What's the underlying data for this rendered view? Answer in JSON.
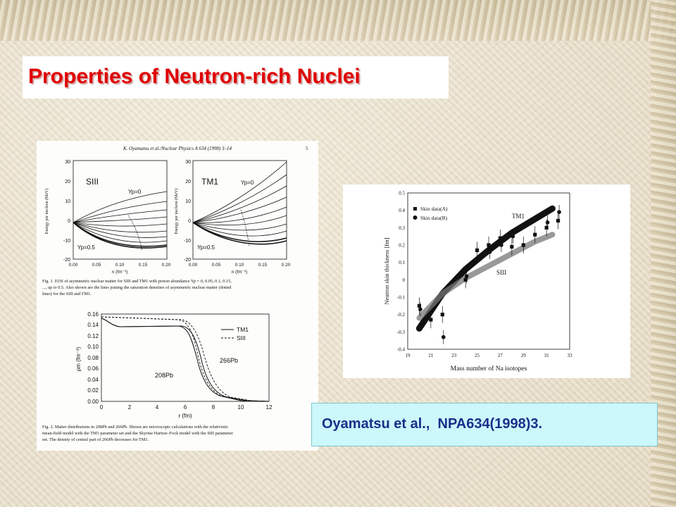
{
  "slide": {
    "title": "Properties of Neutron-rich Nuclei",
    "citation": "Oyamatsu et al.,  NPA634(1998)3."
  },
  "paper": {
    "header": "K. Oyamatsu et al./Nuclear Physics A 634 (1998) 3–14",
    "page_number": "5",
    "fig1_caption": [
      "Fig. 1. EOS of asymmetric nuclear matter for SIII and TM1 with proton abundance Yp = 0, 0.05, 0.1, 0.15,",
      "..., up to 0.5. Also shown are the lines joining the saturation densities of asymmetric nuclear matter (dotted",
      "lines) for the SIII and TM1."
    ],
    "fig2_caption": [
      "Fig. 2. Matter distributions in 208Pb and 266Pb. Shown are microscopic calculations with the relativistic",
      "mean-field model with the TM1 parameter set and the Skyrme Hartree–Fock model with the SIII parameter",
      "set. The density of central part of 266Pb decreases for TM1."
    ],
    "eos_panels": [
      {
        "label": "SIII",
        "yp_top": "Yp=0",
        "yp_bottom": "Yp=0.5"
      },
      {
        "label": "TM1",
        "yp_top": "Yp=0",
        "yp_bottom": "Yp=0.5"
      }
    ],
    "eos_ylabel": "Energy per nucleon (MeV)",
    "eos_xlabel": "n (fm⁻³)",
    "eos_xticks": [
      "0.00",
      "0.05",
      "0.10",
      "0.15",
      "0.20"
    ],
    "eos_yticks": [
      "30",
      "20",
      "10",
      "0",
      "-10",
      "-20"
    ],
    "density_xlabel": "r (fm)",
    "density_ylabel": "ρm (fm⁻³)",
    "density_xticks": [
      "0",
      "2",
      "4",
      "6",
      "8",
      "10",
      "12"
    ],
    "density_yticks": [
      "0.16",
      "0.14",
      "0.12",
      "0.10",
      "0.08",
      "0.06",
      "0.04",
      "0.02",
      "0.00"
    ],
    "density_legend": [
      "TM1",
      "SIII"
    ],
    "density_labels": [
      "266Pb",
      "208Pb"
    ]
  },
  "chart_data": [
    {
      "type": "line",
      "xlabel": "n (fm⁻³)",
      "ylabel": "Energy per nucleon (MeV)",
      "xlim": [
        0,
        0.2
      ],
      "ylim": [
        -20,
        30
      ],
      "series": [
        {
          "name": "SIII Yp=0",
          "x": [
            0,
            0.05,
            0.1,
            0.15,
            0.2
          ],
          "y": [
            0,
            7,
            11,
            14,
            16
          ]
        },
        {
          "name": "SIII Yp=0.5",
          "x": [
            0,
            0.05,
            0.1,
            0.15,
            0.2
          ],
          "y": [
            0,
            -8,
            -14.5,
            -15.5,
            -12
          ]
        }
      ]
    },
    {
      "type": "line",
      "xlabel": "n (fm⁻³)",
      "ylabel": "Energy per nucleon (MeV)",
      "xlim": [
        0,
        0.2
      ],
      "ylim": [
        -20,
        30
      ],
      "series": [
        {
          "name": "TM1 Yp=0",
          "x": [
            0,
            0.05,
            0.1,
            0.15,
            0.2
          ],
          "y": [
            0,
            6,
            13,
            22,
            30
          ]
        },
        {
          "name": "TM1 Yp=0.5",
          "x": [
            0,
            0.05,
            0.1,
            0.15,
            0.2
          ],
          "y": [
            0,
            -9,
            -15,
            -16,
            -14
          ]
        }
      ]
    },
    {
      "type": "line",
      "xlabel": "r (fm)",
      "ylabel": "ρm (fm⁻³)",
      "xlim": [
        0,
        12
      ],
      "ylim": [
        0,
        0.16
      ],
      "series": [
        {
          "name": "TM1",
          "x": [
            0,
            2,
            4,
            5.5,
            6.5,
            7.5,
            8.5,
            10
          ],
          "y": [
            0.15,
            0.135,
            0.135,
            0.134,
            0.1,
            0.04,
            0.01,
            0
          ]
        },
        {
          "name": "SIII",
          "x": [
            0,
            2,
            4,
            5.5,
            6.5,
            7.5,
            8.5,
            10
          ],
          "y": [
            0.153,
            0.15,
            0.148,
            0.147,
            0.12,
            0.05,
            0.012,
            0
          ]
        }
      ]
    },
    {
      "type": "scatter",
      "xlabel": "Mass number of Na isotopes",
      "ylabel": "Neutron skin thickness  [fm]",
      "xlim": [
        19,
        33
      ],
      "ylim": [
        -0.4,
        0.5
      ],
      "xticks": [
        "19",
        "21",
        "23",
        "25",
        "27",
        "29",
        "31",
        "33"
      ],
      "yticks": [
        "0.5",
        "0.4",
        "0.3",
        "0.2",
        "0.1",
        "0",
        "-0.1",
        "-0.2",
        "-0.3",
        "-0.4"
      ],
      "legend": [
        "Skin data(A)",
        "Skin data(B)"
      ],
      "band_labels": [
        "TM1",
        "SIII"
      ],
      "series": [
        {
          "name": "Skin data(A)",
          "x": [
            20,
            21,
            22,
            24,
            25,
            26,
            27,
            28,
            29,
            30,
            31,
            32
          ],
          "y": [
            -0.15,
            -0.23,
            -0.2,
            0,
            0.17,
            0.2,
            0.24,
            0.19,
            0.2,
            0.26,
            0.3,
            0.34
          ]
        },
        {
          "name": "Skin data(B)",
          "x": [
            20,
            22,
            24,
            26,
            27,
            28,
            31,
            32
          ],
          "y": [
            -0.17,
            -0.33,
            0.02,
            0.16,
            0.2,
            0.25,
            0.33,
            0.39
          ]
        },
        {
          "name": "TM1",
          "x": [
            20,
            22,
            24,
            26,
            28,
            30,
            31.5
          ],
          "y": [
            -0.28,
            -0.08,
            0.06,
            0.17,
            0.27,
            0.35,
            0.41
          ]
        },
        {
          "name": "SIII",
          "x": [
            20,
            22,
            24,
            26,
            28,
            30,
            31.5
          ],
          "y": [
            -0.22,
            -0.08,
            0.01,
            0.08,
            0.15,
            0.22,
            0.26
          ]
        }
      ]
    }
  ]
}
